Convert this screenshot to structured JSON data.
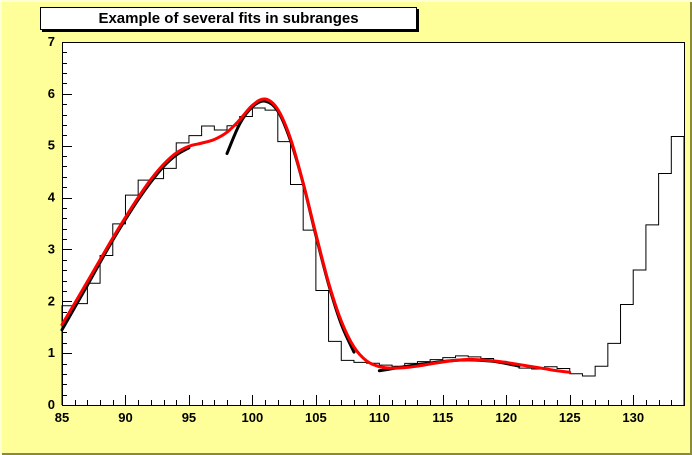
{
  "window": {
    "background": "#ffff99",
    "bevel_light": "#ffffd6",
    "bevel_dark": "#8a8a3a"
  },
  "title": {
    "text": "Example of several fits in subranges"
  },
  "palette": {
    "frame_background": "#ffffff",
    "axis_color": "#000000",
    "histogram_color": "#000000",
    "subrange_fit_color": "#000000",
    "total_fit_color": "#ff0000"
  },
  "chart_data": {
    "type": "line",
    "subtype": "histogram-with-fit-curves",
    "title": "Example of several fits in subranges",
    "xlabel": "",
    "ylabel": "",
    "legend": "none",
    "grid": false,
    "x_axis": {
      "min": 85,
      "max": 134,
      "major_ticks": [
        85,
        90,
        95,
        100,
        105,
        110,
        115,
        120,
        125,
        130
      ],
      "minor_step": 1
    },
    "y_axis": {
      "min": 0,
      "max": 7,
      "major_ticks": [
        0,
        1,
        2,
        3,
        4,
        5,
        6,
        7
      ],
      "minor_step": 0.2
    },
    "histogram": {
      "name": "h",
      "bin_start": 85,
      "bin_width": 1,
      "values": [
        1.9135,
        1.9538,
        2.3474,
        2.8837,
        3.4936,
        4.0476,
        4.3372,
        4.3643,
        4.563,
        5.0542,
        5.1942,
        5.3805,
        5.3032,
        5.3846,
        5.564,
        5.7285,
        5.6858,
        5.08,
        4.2518,
        3.3722,
        2.2074,
        1.2275,
        0.8598,
        0.8221,
        0.8047,
        0.7684,
        0.747,
        0.802,
        0.8362,
        0.8745,
        0.9144,
        0.9463,
        0.9285,
        0.8955,
        0.8411,
        0.7854,
        0.7101,
        0.6939,
        0.7364,
        0.7033,
        0.6029,
        0.56,
        0.7477,
        1.1888,
        1.9382,
        2.6027,
        3.473,
        4.465,
        5.177
      ]
    },
    "fit_curves": [
      {
        "name": "g1-subrange-fit",
        "range": [
          85,
          95
        ],
        "color": "#000000",
        "line_width": 3,
        "points": [
          [
            85,
            1.45
          ],
          [
            86,
            1.88
          ],
          [
            87,
            2.31
          ],
          [
            88,
            2.75
          ],
          [
            89,
            3.18
          ],
          [
            90,
            3.58
          ],
          [
            91,
            3.96
          ],
          [
            92,
            4.3
          ],
          [
            93,
            4.6
          ],
          [
            94,
            4.82
          ],
          [
            95,
            4.96
          ]
        ]
      },
      {
        "name": "g2-subrange-fit",
        "range": [
          98,
          108
        ],
        "color": "#000000",
        "line_width": 3,
        "points": [
          [
            98,
            4.85
          ],
          [
            99,
            5.42
          ],
          [
            100,
            5.75
          ],
          [
            101,
            5.86
          ],
          [
            102,
            5.67
          ],
          [
            103,
            5.1
          ],
          [
            104,
            4.27
          ],
          [
            105,
            3.27
          ],
          [
            106,
            2.33
          ],
          [
            107,
            1.56
          ],
          [
            108,
            1.02
          ]
        ]
      },
      {
        "name": "g3-subrange-fit",
        "range": [
          110,
          121
        ],
        "color": "#000000",
        "line_width": 3,
        "points": [
          [
            110,
            0.66
          ],
          [
            111,
            0.7
          ],
          [
            112,
            0.74
          ],
          [
            113,
            0.78
          ],
          [
            114,
            0.81
          ],
          [
            115,
            0.84
          ],
          [
            116,
            0.86
          ],
          [
            117,
            0.87
          ],
          [
            118,
            0.86
          ],
          [
            119,
            0.84
          ],
          [
            120,
            0.8
          ],
          [
            121,
            0.75
          ]
        ]
      },
      {
        "name": "total-fit",
        "range": [
          85,
          125
        ],
        "color": "#ff0000",
        "line_width": 3,
        "points": [
          [
            85,
            1.55
          ],
          [
            86,
            1.96
          ],
          [
            87,
            2.38
          ],
          [
            88,
            2.8
          ],
          [
            89,
            3.22
          ],
          [
            90,
            3.62
          ],
          [
            91,
            4.0
          ],
          [
            92,
            4.35
          ],
          [
            93,
            4.64
          ],
          [
            94,
            4.86
          ],
          [
            95,
            4.99
          ],
          [
            96,
            5.05
          ],
          [
            97,
            5.12
          ],
          [
            98,
            5.26
          ],
          [
            99,
            5.5
          ],
          [
            100,
            5.78
          ],
          [
            101,
            5.9
          ],
          [
            102,
            5.7
          ],
          [
            103,
            5.14
          ],
          [
            104,
            4.28
          ],
          [
            105,
            3.3
          ],
          [
            106,
            2.36
          ],
          [
            107,
            1.62
          ],
          [
            108,
            1.12
          ],
          [
            109,
            0.85
          ],
          [
            110,
            0.74
          ],
          [
            111,
            0.71
          ],
          [
            112,
            0.72
          ],
          [
            113,
            0.75
          ],
          [
            114,
            0.79
          ],
          [
            115,
            0.83
          ],
          [
            116,
            0.86
          ],
          [
            117,
            0.88
          ],
          [
            118,
            0.87
          ],
          [
            119,
            0.85
          ],
          [
            120,
            0.82
          ],
          [
            121,
            0.78
          ],
          [
            122,
            0.74
          ],
          [
            123,
            0.7
          ],
          [
            124,
            0.66
          ],
          [
            125,
            0.63
          ]
        ]
      }
    ]
  }
}
